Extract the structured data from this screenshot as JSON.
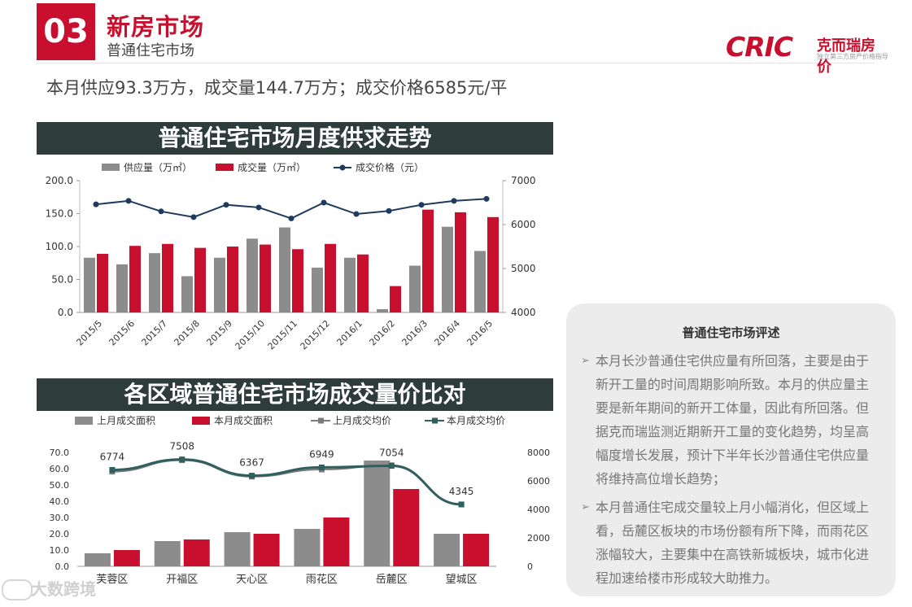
{
  "header": {
    "section_number": "03",
    "title": "新房市场",
    "subtitle": "普通住宅市场"
  },
  "logo": {
    "brand": "CRIC",
    "name_cn": "克而瑞房价",
    "tagline": "独立第三方房产价格指导"
  },
  "summary": "本月供应93.3万方，成交量144.7万方；成交价格6585元/平",
  "chart1_heading": "普通住宅市场月度供求走势",
  "chart2_heading": "各区域普通住宅市场成交量价比对",
  "commentary": {
    "title": "普通住宅市场评述",
    "arrow": "➢",
    "bullets": [
      "本月长沙普通住宅供应量有所回落，主要是由于新开工量的时间周期影响所致。本月的供应量主要是新年期间的新开工体量，因此有所回落。但据克而瑞监测近期新开工量的变化趋势，均呈高幅度增长发展，预计下半年长沙普通住宅供应量将维持高位增长趋势；",
      "本月普通住宅成交量较上月小幅消化，但区域上看，岳麓区板块的市场份额有所下降，而雨花区涨幅较大，主要集中在高铁新城板块，城市化进程加速给楼市形成较大助推力。"
    ]
  },
  "watermark": "大数跨境",
  "colors": {
    "red": "#c8102e",
    "gray": "#8c8c8c",
    "navy": "#1f3a5f",
    "teal": "#2f5f5f",
    "band": "#2f3c3c"
  },
  "chart_data": [
    {
      "type": "bar",
      "title": "普通住宅市场月度供求走势",
      "categories": [
        "2015/5",
        "2015/6",
        "2015/7",
        "2015/8",
        "2015/9",
        "2015/10",
        "2015/11",
        "2015/12",
        "2016/1",
        "2016/2",
        "2016/3",
        "2016/4",
        "2016/5"
      ],
      "series": [
        {
          "name": "供应量（万㎡）",
          "type": "bar",
          "axis": "left",
          "color": "#8c8c8c",
          "values": [
            83,
            73,
            90,
            55,
            83,
            112,
            129,
            68,
            83,
            5,
            71,
            130,
            93.3
          ]
        },
        {
          "name": "成交量（万㎡）",
          "type": "bar",
          "axis": "left",
          "color": "#c8102e",
          "values": [
            89,
            101,
            104,
            98,
            100,
            103,
            96,
            104,
            88,
            40,
            156,
            152,
            144.7
          ]
        },
        {
          "name": "成交价格（元）",
          "type": "line",
          "axis": "right",
          "color": "#1f3a5f",
          "values": [
            6460,
            6540,
            6300,
            6170,
            6450,
            6390,
            6140,
            6500,
            6240,
            6310,
            6450,
            6540,
            6585
          ]
        }
      ],
      "ylim_left": [
        0,
        200
      ],
      "ylim_right": [
        4000,
        7000
      ],
      "yticks_left": [
        "0.0",
        "50.0",
        "100.0",
        "150.0",
        "200.0"
      ],
      "yticks_right": [
        "4000",
        "5000",
        "6000",
        "7000"
      ],
      "legend": "top"
    },
    {
      "type": "bar",
      "title": "各区域普通住宅市场成交量价比对",
      "categories": [
        "芙蓉区",
        "开福区",
        "天心区",
        "雨花区",
        "岳麓区",
        "望城区"
      ],
      "series": [
        {
          "name": "上月成交面积",
          "type": "bar",
          "axis": "left",
          "color": "#8c8c8c",
          "values": [
            8,
            15.5,
            21,
            23,
            65,
            20
          ]
        },
        {
          "name": "本月成交面积",
          "type": "bar",
          "axis": "left",
          "color": "#c8102e",
          "values": [
            10,
            16.5,
            20,
            30,
            47.5,
            20
          ]
        },
        {
          "name": "上月成交均价",
          "type": "line",
          "axis": "right",
          "color": "#7a7a7a",
          "values": [
            6650,
            7450,
            6300,
            6800,
            7100,
            4345
          ]
        },
        {
          "name": "本月成交均价",
          "type": "line",
          "axis": "right",
          "color": "#2f5f5f",
          "values": [
            6774,
            7508,
            6367,
            6949,
            7054,
            4345
          ]
        }
      ],
      "data_labels": [
        "6774",
        "7508",
        "6367",
        "6949",
        "7054",
        "4345"
      ],
      "ylim_left": [
        0,
        70
      ],
      "ylim_right": [
        0,
        8000
      ],
      "yticks_left": [
        "0.0",
        "10.0",
        "20.0",
        "30.0",
        "40.0",
        "50.0",
        "60.0",
        "70.0"
      ],
      "yticks_right": [
        "0",
        "2000",
        "4000",
        "6000",
        "8000"
      ],
      "legend": "top"
    }
  ]
}
